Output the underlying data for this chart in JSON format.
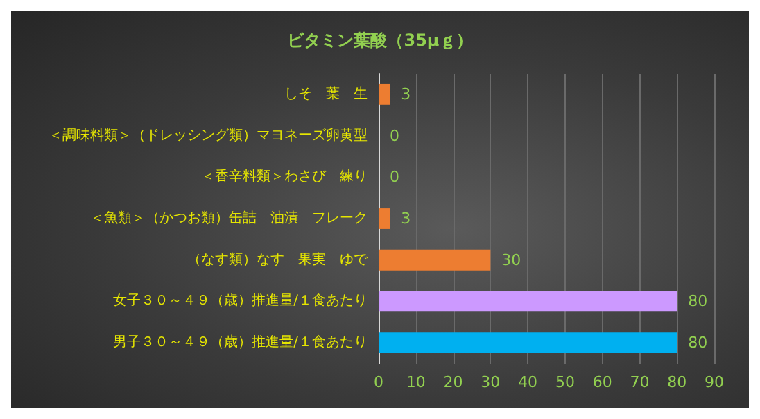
{
  "chart_data": {
    "type": "bar",
    "orientation": "horizontal",
    "title": "ビタミン葉酸（35μｇ）",
    "categories": [
      "しそ　葉　生",
      "＜調味料類＞（ドレッシング類）マヨネーズ卵黄型",
      "＜香辛料類＞わさび　練り",
      "＜魚類＞（かつお類）缶詰　油漬　フレーク",
      "（なす類）なす　果実　ゆで",
      "女子３０～４９（歳）推進量/１食あたり",
      "男子３０～４９（歳）推進量/１食あたり"
    ],
    "values": [
      3,
      0,
      0,
      3,
      30,
      80,
      80
    ],
    "colors": [
      "#ed7d31",
      "#ed7d31",
      "#ed7d31",
      "#ed7d31",
      "#ed7d31",
      "#cc99ff",
      "#00b0f0"
    ],
    "xlim": [
      0,
      90
    ],
    "xticks": [
      0,
      10,
      20,
      30,
      40,
      50,
      60,
      70,
      80,
      90
    ],
    "grid": "x",
    "data_labels": true
  }
}
